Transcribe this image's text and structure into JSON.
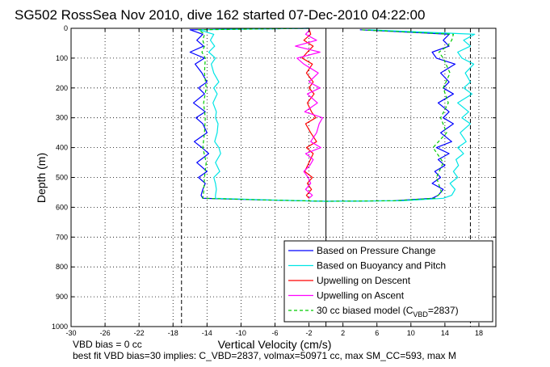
{
  "chart_data": {
    "type": "line",
    "title": "SG502 RossSea Nov 2010, dive 162 started 07-Dec-2010 04:22:00",
    "xlabel": "Vertical Velocity (cm/s)",
    "ylabel": "Depth (m)",
    "xlim": [
      -30,
      20
    ],
    "ylim": [
      1000,
      0
    ],
    "y_reversed": true,
    "grid": true,
    "grid_style": "dotted",
    "xticks": [
      -30,
      -26,
      -22,
      -18,
      -14,
      -10,
      -6,
      -2,
      2,
      6,
      10,
      14,
      18
    ],
    "yticks": [
      0,
      100,
      200,
      300,
      400,
      500,
      600,
      700,
      800,
      900,
      1000
    ],
    "reference_lines": [
      {
        "x": 0,
        "style": "solid",
        "color": "#000000"
      },
      {
        "x": -17,
        "style": "dashed",
        "color": "#000000"
      },
      {
        "x": 17,
        "style": "dashed",
        "color": "#000000"
      }
    ],
    "legend_position": "bottom-right",
    "legend": [
      {
        "label": "Based on Pressure Change",
        "color": "#0000ff",
        "style": "solid"
      },
      {
        "label": "Based on Buoyancy and Pitch",
        "color": "#00e5e5",
        "style": "solid"
      },
      {
        "label": "Upwelling on Descent",
        "color": "#ff0000",
        "style": "solid"
      },
      {
        "label": "Upwelling on Ascent",
        "color": "#ff00ff",
        "style": "solid"
      },
      {
        "label_prefix": "30 cc biased model (C",
        "label_sub": "VBD",
        "label_suffix": "=2837)",
        "color": "#00cc00",
        "style": "dashed"
      }
    ],
    "series": [
      {
        "name": "Based on Pressure Change",
        "color": "#0000ff",
        "depth": [
          0,
          5,
          20,
          40,
          60,
          80,
          100,
          120,
          150,
          180,
          200,
          220,
          250,
          280,
          300,
          320,
          350,
          380,
          400,
          420,
          450,
          480,
          500,
          520,
          540,
          560,
          570,
          575,
          580,
          578,
          570,
          560,
          540,
          520,
          500,
          480,
          460,
          440,
          420,
          400,
          380,
          350,
          320,
          300,
          280,
          250,
          220,
          200,
          180,
          150,
          120,
          100,
          80,
          60,
          40,
          20,
          5
        ],
        "velocity": [
          -2,
          -16,
          -14.5,
          -15.2,
          -14.4,
          -16.0,
          -14.3,
          -15.4,
          -14.6,
          -14.0,
          -15.0,
          -14.3,
          -15.6,
          -14.2,
          -15.3,
          -14.5,
          -14.0,
          -15.5,
          -14.6,
          -13.8,
          -15.2,
          -14.0,
          -15.0,
          -14.2,
          -14.5,
          -14.7,
          -14.5,
          -8,
          0,
          8,
          12.5,
          13.2,
          13.8,
          12.5,
          13.5,
          12.8,
          14.0,
          13.2,
          14.5,
          13.0,
          14.8,
          13.5,
          15.0,
          13.8,
          14.5,
          13.2,
          15.0,
          13.8,
          14.5,
          13.5,
          15.2,
          13.0,
          12.5,
          14.5,
          13.8,
          14.5,
          4
        ]
      },
      {
        "name": "Based on Buoyancy and Pitch",
        "color": "#00e5e5",
        "depth": [
          0,
          5,
          20,
          40,
          60,
          80,
          100,
          120,
          150,
          180,
          200,
          220,
          250,
          280,
          300,
          320,
          350,
          380,
          400,
          420,
          450,
          480,
          500,
          520,
          540,
          560,
          570,
          575,
          580,
          578,
          570,
          560,
          540,
          520,
          500,
          480,
          460,
          440,
          420,
          400,
          380,
          350,
          320,
          300,
          280,
          250,
          220,
          200,
          180,
          150,
          120,
          100,
          80,
          60,
          40,
          20,
          5
        ],
        "velocity": [
          -2,
          -15,
          -13.2,
          -13.6,
          -13.1,
          -13.8,
          -13.0,
          -13.5,
          -13.2,
          -12.6,
          -13.2,
          -12.8,
          -13.3,
          -12.9,
          -13.0,
          -12.7,
          -12.8,
          -13.1,
          -12.6,
          -12.4,
          -13.0,
          -12.5,
          -13.2,
          -13.0,
          -12.9,
          -13.0,
          -13.0,
          -7,
          0,
          9,
          13.8,
          14.8,
          15.2,
          14.6,
          15.5,
          15.0,
          15.6,
          15.3,
          16.2,
          15.5,
          16.5,
          15.8,
          17.0,
          16.0,
          16.8,
          15.5,
          17.2,
          16.2,
          17.0,
          16.4,
          17.4,
          16.0,
          15.5,
          17.0,
          16.2,
          17.5,
          5
        ]
      },
      {
        "name": "Upwelling on Descent",
        "color": "#ff0000",
        "depth": [
          0,
          20,
          40,
          60,
          80,
          100,
          120,
          150,
          180,
          200,
          220,
          250,
          280,
          300,
          320,
          350,
          380,
          400,
          420,
          450,
          480,
          500,
          520,
          540,
          560,
          570
        ],
        "velocity": [
          -2.0,
          -1.8,
          -2.6,
          -1.5,
          -2.2,
          -2.8,
          -1.6,
          -2.3,
          -1.5,
          -2.0,
          -1.4,
          -2.2,
          -1.7,
          -1.2,
          -2.4,
          -1.8,
          -1.1,
          -2.3,
          -1.5,
          -2.0,
          -2.5,
          -1.6,
          -2.2,
          -1.7,
          -2.3,
          -2.0
        ]
      },
      {
        "name": "Upwelling on Ascent",
        "color": "#ff00ff",
        "depth": [
          570,
          560,
          540,
          520,
          500,
          480,
          460,
          440,
          420,
          400,
          380,
          350,
          320,
          300,
          280,
          250,
          220,
          200,
          180,
          150,
          120,
          100,
          80,
          60,
          40,
          20,
          5
        ],
        "velocity": [
          -2.0,
          -1.6,
          -2.4,
          -1.8,
          -2.1,
          -2.6,
          -1.9,
          -1.5,
          -2.4,
          -0.6,
          -1.8,
          -1.1,
          -0.8,
          -0.4,
          -2.5,
          -1.0,
          -2.2,
          -0.7,
          -2.0,
          -0.9,
          -2.6,
          -3.4,
          -0.7,
          -3.6,
          -1.1,
          -2.4,
          -1.9
        ]
      },
      {
        "name": "30 cc biased model",
        "color": "#00cc00",
        "style": "dashed",
        "depth": [
          0,
          5,
          20,
          40,
          60,
          80,
          100,
          150,
          200,
          250,
          300,
          350,
          400,
          450,
          500,
          550,
          570,
          575,
          580,
          578,
          570,
          550,
          500,
          450,
          400,
          350,
          300,
          250,
          200,
          150,
          100,
          80,
          60,
          40,
          20,
          5
        ],
        "velocity": [
          -2,
          -15,
          -14.3,
          -14.5,
          -14.3,
          -14.6,
          -14.2,
          -14.3,
          -14.1,
          -14.4,
          -14.2,
          -14.3,
          -14.5,
          -14.1,
          -14.3,
          -14.4,
          -14.5,
          -8,
          0,
          8,
          12.8,
          13.6,
          13.0,
          13.8,
          12.6,
          14.2,
          13.5,
          14.4,
          13.8,
          14.6,
          13.8,
          13.3,
          14.3,
          14.8,
          15.0,
          4
        ]
      }
    ]
  },
  "notes": {
    "line1": "VBD bias = 0 cc",
    "line2": "best fit VBD bias=30 implies: C_VBD=2837, volmax=50971 cc, max SM_CC=593, max M"
  }
}
